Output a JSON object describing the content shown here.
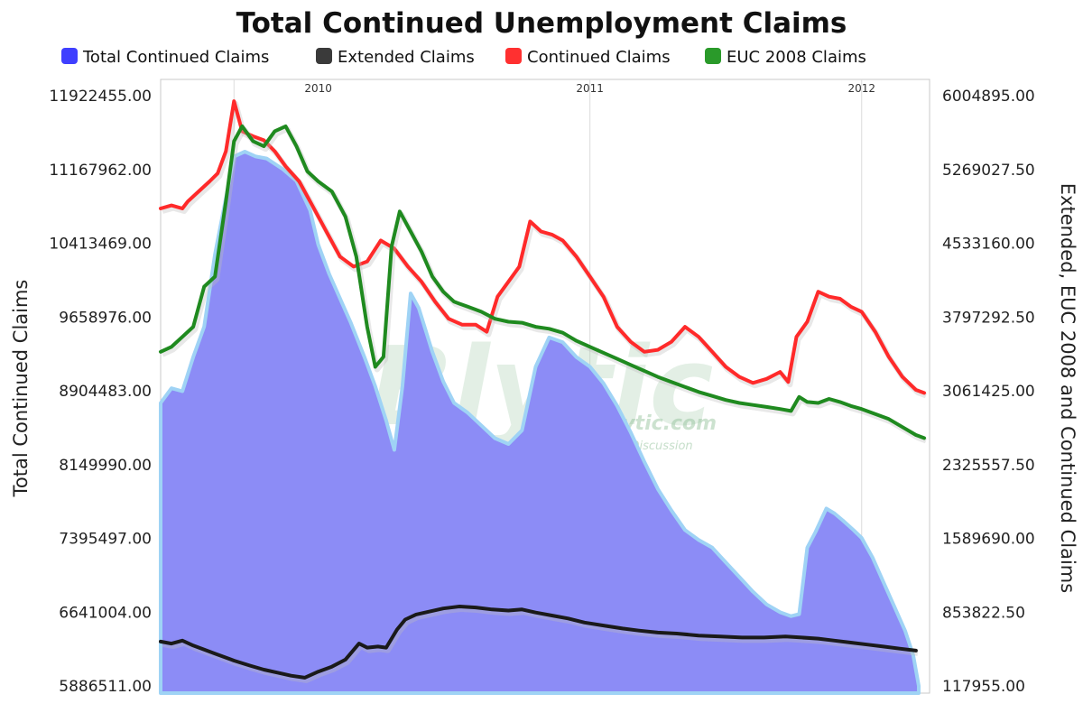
{
  "chart_data": {
    "type": "line",
    "title": "Total Continued Unemployment Claims",
    "ylabel_left": "Total Continued Claims",
    "ylabel_right": "Extended, EUC 2008 and Continued Claims",
    "ylim_left": [
      5886511.0,
      11922455.0
    ],
    "ylim_right": [
      117955.0,
      6004895.0
    ],
    "yticks_left": [
      "5886511.00",
      "6641004.00",
      "7395497.00",
      "8149990.00",
      "8904483.00",
      "9658976.00",
      "10413469.00",
      "11167962.00",
      "11922455.00"
    ],
    "yticks_right": [
      "117955.00",
      "853822.50",
      "1589690.00",
      "2325557.50",
      "3061425.00",
      "3797292.50",
      "4533160.00",
      "5269027.50",
      "6004895.00"
    ],
    "xlim": [
      2009.42,
      2012.25
    ],
    "year_labels": [
      {
        "label": "2010",
        "x": 2010.0
      },
      {
        "label": "2011",
        "x": 2011.0
      },
      {
        "label": "2012",
        "x": 2012.0
      }
    ],
    "gridlines_x": [
      2009.69,
      2011.0,
      2012.0
    ],
    "legend_position": "top",
    "series": [
      {
        "name": "Total Continued Claims",
        "kind": "area",
        "axis": "left",
        "color": "#8c8cf6",
        "points": [
          [
            2009.42,
            8780000
          ],
          [
            2009.46,
            8930000
          ],
          [
            2009.5,
            8900000
          ],
          [
            2009.54,
            9250000
          ],
          [
            2009.58,
            9560000
          ],
          [
            2009.62,
            10300000
          ],
          [
            2009.69,
            11300000
          ],
          [
            2009.73,
            11350000
          ],
          [
            2009.77,
            11300000
          ],
          [
            2009.81,
            11280000
          ],
          [
            2009.87,
            11170000
          ],
          [
            2009.92,
            11050000
          ],
          [
            2009.97,
            10750000
          ],
          [
            2010.0,
            10400000
          ],
          [
            2010.04,
            10100000
          ],
          [
            2010.08,
            9850000
          ],
          [
            2010.12,
            9600000
          ],
          [
            2010.17,
            9250000
          ],
          [
            2010.21,
            8950000
          ],
          [
            2010.25,
            8600000
          ],
          [
            2010.28,
            8300000
          ],
          [
            2010.31,
            8950000
          ],
          [
            2010.34,
            9900000
          ],
          [
            2010.37,
            9750000
          ],
          [
            2010.42,
            9300000
          ],
          [
            2010.46,
            9000000
          ],
          [
            2010.5,
            8780000
          ],
          [
            2010.55,
            8680000
          ],
          [
            2010.6,
            8550000
          ],
          [
            2010.65,
            8420000
          ],
          [
            2010.7,
            8360000
          ],
          [
            2010.75,
            8500000
          ],
          [
            2010.8,
            9150000
          ],
          [
            2010.85,
            9450000
          ],
          [
            2010.9,
            9400000
          ],
          [
            2010.95,
            9250000
          ],
          [
            2011.0,
            9150000
          ],
          [
            2011.05,
            8980000
          ],
          [
            2011.1,
            8750000
          ],
          [
            2011.15,
            8480000
          ],
          [
            2011.2,
            8180000
          ],
          [
            2011.25,
            7900000
          ],
          [
            2011.3,
            7680000
          ],
          [
            2011.35,
            7480000
          ],
          [
            2011.4,
            7380000
          ],
          [
            2011.45,
            7300000
          ],
          [
            2011.5,
            7150000
          ],
          [
            2011.55,
            7000000
          ],
          [
            2011.6,
            6850000
          ],
          [
            2011.65,
            6720000
          ],
          [
            2011.7,
            6640000
          ],
          [
            2011.74,
            6600000
          ],
          [
            2011.77,
            6620000
          ],
          [
            2011.8,
            7300000
          ],
          [
            2011.83,
            7460000
          ],
          [
            2011.87,
            7700000
          ],
          [
            2011.9,
            7650000
          ],
          [
            2011.93,
            7580000
          ],
          [
            2011.97,
            7480000
          ],
          [
            2012.0,
            7400000
          ],
          [
            2012.04,
            7200000
          ],
          [
            2012.08,
            6950000
          ],
          [
            2012.12,
            6700000
          ],
          [
            2012.16,
            6450000
          ],
          [
            2012.19,
            6200000
          ],
          [
            2012.21,
            5886511
          ]
        ]
      },
      {
        "name": "Extended Claims",
        "kind": "line",
        "axis": "right",
        "color": "#1a1a1a",
        "points": [
          [
            2009.42,
            560000
          ],
          [
            2009.46,
            540000
          ],
          [
            2009.5,
            570000
          ],
          [
            2009.54,
            520000
          ],
          [
            2009.58,
            480000
          ],
          [
            2009.62,
            440000
          ],
          [
            2009.69,
            370000
          ],
          [
            2009.75,
            320000
          ],
          [
            2009.8,
            280000
          ],
          [
            2009.85,
            250000
          ],
          [
            2009.9,
            220000
          ],
          [
            2009.95,
            200000
          ],
          [
            2010.0,
            260000
          ],
          [
            2010.05,
            310000
          ],
          [
            2010.1,
            380000
          ],
          [
            2010.15,
            540000
          ],
          [
            2010.18,
            500000
          ],
          [
            2010.22,
            510000
          ],
          [
            2010.25,
            500000
          ],
          [
            2010.29,
            680000
          ],
          [
            2010.32,
            780000
          ],
          [
            2010.36,
            830000
          ],
          [
            2010.41,
            860000
          ],
          [
            2010.46,
            890000
          ],
          [
            2010.52,
            910000
          ],
          [
            2010.58,
            900000
          ],
          [
            2010.64,
            880000
          ],
          [
            2010.7,
            870000
          ],
          [
            2010.75,
            880000
          ],
          [
            2010.8,
            850000
          ],
          [
            2010.86,
            820000
          ],
          [
            2010.92,
            790000
          ],
          [
            2010.98,
            750000
          ],
          [
            2011.05,
            720000
          ],
          [
            2011.12,
            690000
          ],
          [
            2011.18,
            670000
          ],
          [
            2011.25,
            650000
          ],
          [
            2011.32,
            640000
          ],
          [
            2011.4,
            620000
          ],
          [
            2011.48,
            610000
          ],
          [
            2011.56,
            600000
          ],
          [
            2011.64,
            600000
          ],
          [
            2011.72,
            610000
          ],
          [
            2011.78,
            600000
          ],
          [
            2011.84,
            590000
          ],
          [
            2011.9,
            570000
          ],
          [
            2011.96,
            550000
          ],
          [
            2012.02,
            530000
          ],
          [
            2012.08,
            510000
          ],
          [
            2012.14,
            490000
          ],
          [
            2012.2,
            470000
          ]
        ]
      },
      {
        "name": "Continued Claims",
        "kind": "line",
        "axis": "right",
        "color": "#ff2a2a",
        "points": [
          [
            2009.42,
            4880000
          ],
          [
            2009.46,
            4910000
          ],
          [
            2009.5,
            4880000
          ],
          [
            2009.52,
            4950000
          ],
          [
            2009.56,
            5050000
          ],
          [
            2009.6,
            5150000
          ],
          [
            2009.63,
            5230000
          ],
          [
            2009.66,
            5450000
          ],
          [
            2009.69,
            5950000
          ],
          [
            2009.72,
            5650000
          ],
          [
            2009.76,
            5600000
          ],
          [
            2009.8,
            5560000
          ],
          [
            2009.84,
            5450000
          ],
          [
            2009.88,
            5300000
          ],
          [
            2009.93,
            5150000
          ],
          [
            2009.98,
            4900000
          ],
          [
            2010.03,
            4650000
          ],
          [
            2010.08,
            4400000
          ],
          [
            2010.13,
            4300000
          ],
          [
            2010.18,
            4350000
          ],
          [
            2010.23,
            4560000
          ],
          [
            2010.28,
            4480000
          ],
          [
            2010.33,
            4300000
          ],
          [
            2010.38,
            4150000
          ],
          [
            2010.43,
            3950000
          ],
          [
            2010.48,
            3780000
          ],
          [
            2010.53,
            3720000
          ],
          [
            2010.58,
            3720000
          ],
          [
            2010.62,
            3650000
          ],
          [
            2010.66,
            4000000
          ],
          [
            2010.7,
            4150000
          ],
          [
            2010.74,
            4300000
          ],
          [
            2010.78,
            4750000
          ],
          [
            2010.82,
            4650000
          ],
          [
            2010.86,
            4620000
          ],
          [
            2010.9,
            4560000
          ],
          [
            2010.95,
            4400000
          ],
          [
            2011.0,
            4200000
          ],
          [
            2011.05,
            4000000
          ],
          [
            2011.1,
            3700000
          ],
          [
            2011.15,
            3550000
          ],
          [
            2011.2,
            3450000
          ],
          [
            2011.25,
            3470000
          ],
          [
            2011.3,
            3550000
          ],
          [
            2011.35,
            3700000
          ],
          [
            2011.4,
            3600000
          ],
          [
            2011.45,
            3450000
          ],
          [
            2011.5,
            3300000
          ],
          [
            2011.55,
            3200000
          ],
          [
            2011.6,
            3140000
          ],
          [
            2011.65,
            3180000
          ],
          [
            2011.7,
            3250000
          ],
          [
            2011.73,
            3150000
          ],
          [
            2011.76,
            3600000
          ],
          [
            2011.8,
            3750000
          ],
          [
            2011.84,
            4050000
          ],
          [
            2011.88,
            4000000
          ],
          [
            2011.92,
            3980000
          ],
          [
            2011.96,
            3900000
          ],
          [
            2012.0,
            3850000
          ],
          [
            2012.05,
            3650000
          ],
          [
            2012.1,
            3400000
          ],
          [
            2012.15,
            3200000
          ],
          [
            2012.2,
            3070000
          ],
          [
            2012.23,
            3040000
          ]
        ]
      },
      {
        "name": "EUC 2008 Claims",
        "kind": "line",
        "axis": "right",
        "color": "#1f8a1f",
        "points": [
          [
            2009.42,
            3450000
          ],
          [
            2009.46,
            3500000
          ],
          [
            2009.5,
            3600000
          ],
          [
            2009.54,
            3700000
          ],
          [
            2009.58,
            4100000
          ],
          [
            2009.62,
            4200000
          ],
          [
            2009.66,
            4950000
          ],
          [
            2009.69,
            5550000
          ],
          [
            2009.72,
            5700000
          ],
          [
            2009.76,
            5550000
          ],
          [
            2009.8,
            5500000
          ],
          [
            2009.84,
            5650000
          ],
          [
            2009.88,
            5700000
          ],
          [
            2009.92,
            5500000
          ],
          [
            2009.96,
            5250000
          ],
          [
            2010.0,
            5150000
          ],
          [
            2010.05,
            5050000
          ],
          [
            2010.1,
            4800000
          ],
          [
            2010.14,
            4400000
          ],
          [
            2010.18,
            3700000
          ],
          [
            2010.21,
            3300000
          ],
          [
            2010.24,
            3400000
          ],
          [
            2010.27,
            4500000
          ],
          [
            2010.3,
            4850000
          ],
          [
            2010.34,
            4650000
          ],
          [
            2010.38,
            4450000
          ],
          [
            2010.42,
            4200000
          ],
          [
            2010.46,
            4050000
          ],
          [
            2010.5,
            3950000
          ],
          [
            2010.55,
            3900000
          ],
          [
            2010.6,
            3850000
          ],
          [
            2010.65,
            3780000
          ],
          [
            2010.7,
            3750000
          ],
          [
            2010.75,
            3740000
          ],
          [
            2010.8,
            3700000
          ],
          [
            2010.85,
            3680000
          ],
          [
            2010.9,
            3640000
          ],
          [
            2010.95,
            3560000
          ],
          [
            2011.0,
            3500000
          ],
          [
            2011.05,
            3440000
          ],
          [
            2011.1,
            3380000
          ],
          [
            2011.15,
            3320000
          ],
          [
            2011.2,
            3260000
          ],
          [
            2011.25,
            3200000
          ],
          [
            2011.3,
            3150000
          ],
          [
            2011.35,
            3100000
          ],
          [
            2011.4,
            3050000
          ],
          [
            2011.45,
            3010000
          ],
          [
            2011.5,
            2970000
          ],
          [
            2011.55,
            2940000
          ],
          [
            2011.6,
            2920000
          ],
          [
            2011.65,
            2900000
          ],
          [
            2011.7,
            2880000
          ],
          [
            2011.74,
            2860000
          ],
          [
            2011.77,
            3000000
          ],
          [
            2011.8,
            2950000
          ],
          [
            2011.84,
            2940000
          ],
          [
            2011.88,
            2980000
          ],
          [
            2011.92,
            2950000
          ],
          [
            2011.96,
            2910000
          ],
          [
            2012.0,
            2880000
          ],
          [
            2012.05,
            2830000
          ],
          [
            2012.1,
            2780000
          ],
          [
            2012.15,
            2700000
          ],
          [
            2012.2,
            2620000
          ],
          [
            2012.23,
            2590000
          ]
        ]
      }
    ]
  },
  "watermark": {
    "logo": "Blytic",
    "url": "www.blytic.com",
    "tagline": "Data - Analysis - Discussion"
  }
}
